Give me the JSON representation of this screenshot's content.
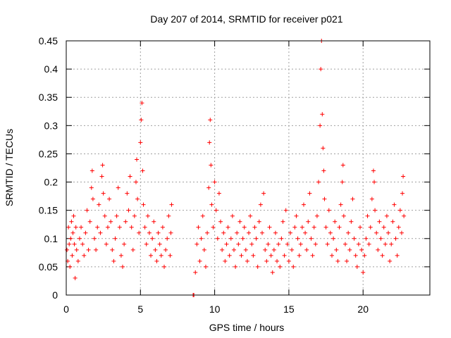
{
  "chart_data": {
    "type": "scatter",
    "title": "Day 207 of 2014, SRMTID for receiver p021",
    "xlabel": "GPS time / hours",
    "ylabel": "SRMTID / TECUs",
    "xlim": [
      0,
      24.5
    ],
    "ylim": [
      0,
      0.45
    ],
    "x_ticks": [
      0,
      5,
      10,
      15,
      20
    ],
    "x_tick_labels": [
      "0",
      "5",
      "10",
      "15",
      "20"
    ],
    "y_ticks": [
      0,
      0.05,
      0.1,
      0.15,
      0.2,
      0.25,
      0.3,
      0.35,
      0.4,
      0.45
    ],
    "y_tick_labels": [
      "0",
      "0.05",
      "0.1",
      "0.15",
      "0.2",
      "0.25",
      "0.3",
      "0.35",
      "0.4",
      "0.45"
    ],
    "grid": true,
    "marker": "+",
    "series": [
      {
        "name": "SRMTID",
        "color": "#ff0000",
        "points": [
          [
            0.05,
            0.08
          ],
          [
            0.1,
            0.06
          ],
          [
            0.15,
            0.12
          ],
          [
            0.2,
            0.09
          ],
          [
            0.25,
            0.05
          ],
          [
            0.3,
            0.1
          ],
          [
            0.35,
            0.13
          ],
          [
            0.4,
            0.07
          ],
          [
            0.45,
            0.11
          ],
          [
            0.5,
            0.14
          ],
          [
            0.55,
            0.09
          ],
          [
            0.6,
            0.03
          ],
          [
            0.65,
            0.12
          ],
          [
            0.7,
            0.08
          ],
          [
            0.8,
            0.06
          ],
          [
            0.9,
            0.1
          ],
          [
            1.0,
            0.12
          ],
          [
            1.1,
            0.09
          ],
          [
            1.2,
            0.07
          ],
          [
            1.3,
            0.11
          ],
          [
            1.4,
            0.15
          ],
          [
            1.5,
            0.08
          ],
          [
            1.6,
            0.13
          ],
          [
            1.7,
            0.19
          ],
          [
            1.75,
            0.22
          ],
          [
            1.8,
            0.17
          ],
          [
            1.9,
            0.1
          ],
          [
            2.0,
            0.08
          ],
          [
            2.1,
            0.12
          ],
          [
            2.2,
            0.16
          ],
          [
            2.3,
            0.11
          ],
          [
            2.4,
            0.21
          ],
          [
            2.45,
            0.23
          ],
          [
            2.5,
            0.18
          ],
          [
            2.6,
            0.14
          ],
          [
            2.7,
            0.09
          ],
          [
            2.8,
            0.12
          ],
          [
            2.9,
            0.17
          ],
          [
            3.0,
            0.13
          ],
          [
            3.1,
            0.08
          ],
          [
            3.2,
            0.06
          ],
          [
            3.3,
            0.1
          ],
          [
            3.4,
            0.14
          ],
          [
            3.5,
            0.19
          ],
          [
            3.6,
            0.12
          ],
          [
            3.7,
            0.07
          ],
          [
            3.8,
            0.05
          ],
          [
            3.9,
            0.09
          ],
          [
            4.0,
            0.13
          ],
          [
            4.1,
            0.18
          ],
          [
            4.2,
            0.15
          ],
          [
            4.3,
            0.21
          ],
          [
            4.4,
            0.12
          ],
          [
            4.5,
            0.08
          ],
          [
            4.6,
            0.14
          ],
          [
            4.7,
            0.2
          ],
          [
            4.75,
            0.24
          ],
          [
            4.8,
            0.17
          ],
          [
            4.9,
            0.11
          ],
          [
            5.0,
            0.27
          ],
          [
            5.05,
            0.31
          ],
          [
            5.1,
            0.34
          ],
          [
            5.15,
            0.22
          ],
          [
            5.2,
            0.16
          ],
          [
            5.3,
            0.12
          ],
          [
            5.4,
            0.09
          ],
          [
            5.5,
            0.14
          ],
          [
            5.6,
            0.11
          ],
          [
            5.7,
            0.07
          ],
          [
            5.8,
            0.1
          ],
          [
            5.9,
            0.13
          ],
          [
            6.0,
            0.08
          ],
          [
            6.1,
            0.06
          ],
          [
            6.2,
            0.11
          ],
          [
            6.3,
            0.09
          ],
          [
            6.4,
            0.07
          ],
          [
            6.5,
            0.12
          ],
          [
            6.6,
            0.05
          ],
          [
            6.7,
            0.08
          ],
          [
            6.8,
            0.1
          ],
          [
            6.9,
            0.14
          ],
          [
            7.0,
            0.07
          ],
          [
            7.05,
            0.11
          ],
          [
            7.1,
            0.16
          ],
          [
            8.55,
            0.0
          ],
          [
            8.6,
            0.0
          ],
          [
            8.7,
            0.04
          ],
          [
            8.8,
            0.09
          ],
          [
            8.9,
            0.12
          ],
          [
            9.0,
            0.06
          ],
          [
            9.1,
            0.1
          ],
          [
            9.2,
            0.14
          ],
          [
            9.3,
            0.08
          ],
          [
            9.4,
            0.05
          ],
          [
            9.5,
            0.11
          ],
          [
            9.6,
            0.19
          ],
          [
            9.65,
            0.27
          ],
          [
            9.7,
            0.31
          ],
          [
            9.75,
            0.23
          ],
          [
            9.8,
            0.16
          ],
          [
            9.9,
            0.12
          ],
          [
            10.0,
            0.2
          ],
          [
            10.1,
            0.15
          ],
          [
            10.2,
            0.1
          ],
          [
            10.3,
            0.18
          ],
          [
            10.4,
            0.13
          ],
          [
            10.5,
            0.08
          ],
          [
            10.6,
            0.11
          ],
          [
            10.7,
            0.06
          ],
          [
            10.8,
            0.09
          ],
          [
            10.9,
            0.12
          ],
          [
            11.0,
            0.07
          ],
          [
            11.1,
            0.1
          ],
          [
            11.2,
            0.14
          ],
          [
            11.3,
            0.08
          ],
          [
            11.4,
            0.05
          ],
          [
            11.5,
            0.11
          ],
          [
            11.6,
            0.09
          ],
          [
            11.7,
            0.13
          ],
          [
            11.8,
            0.07
          ],
          [
            11.9,
            0.1
          ],
          [
            12.0,
            0.12
          ],
          [
            12.1,
            0.08
          ],
          [
            12.2,
            0.06
          ],
          [
            12.3,
            0.11
          ],
          [
            12.4,
            0.14
          ],
          [
            12.5,
            0.09
          ],
          [
            12.6,
            0.07
          ],
          [
            12.7,
            0.12
          ],
          [
            12.8,
            0.1
          ],
          [
            12.9,
            0.05
          ],
          [
            13.0,
            0.13
          ],
          [
            13.1,
            0.16
          ],
          [
            13.2,
            0.11
          ],
          [
            13.3,
            0.18
          ],
          [
            13.4,
            0.08
          ],
          [
            13.5,
            0.06
          ],
          [
            13.6,
            0.09
          ],
          [
            13.7,
            0.12
          ],
          [
            13.8,
            0.07
          ],
          [
            13.9,
            0.04
          ],
          [
            14.0,
            0.08
          ],
          [
            14.1,
            0.11
          ],
          [
            14.2,
            0.06
          ],
          [
            14.3,
            0.09
          ],
          [
            14.4,
            0.05
          ],
          [
            14.5,
            0.1
          ],
          [
            14.6,
            0.13
          ],
          [
            14.7,
            0.07
          ],
          [
            14.8,
            0.15
          ],
          [
            14.9,
            0.09
          ],
          [
            15.0,
            0.06
          ],
          [
            15.1,
            0.11
          ],
          [
            15.2,
            0.08
          ],
          [
            15.3,
            0.05
          ],
          [
            15.4,
            0.12
          ],
          [
            15.5,
            0.14
          ],
          [
            15.6,
            0.1
          ],
          [
            15.7,
            0.07
          ],
          [
            15.8,
            0.09
          ],
          [
            15.9,
            0.12
          ],
          [
            16.0,
            0.16
          ],
          [
            16.1,
            0.11
          ],
          [
            16.2,
            0.08
          ],
          [
            16.3,
            0.13
          ],
          [
            16.4,
            0.18
          ],
          [
            16.5,
            0.1
          ],
          [
            16.6,
            0.07
          ],
          [
            16.7,
            0.12
          ],
          [
            16.8,
            0.09
          ],
          [
            16.9,
            0.14
          ],
          [
            17.0,
            0.2
          ],
          [
            17.1,
            0.3
          ],
          [
            17.15,
            0.4
          ],
          [
            17.2,
            0.45
          ],
          [
            17.25,
            0.32
          ],
          [
            17.3,
            0.26
          ],
          [
            17.35,
            0.22
          ],
          [
            17.4,
            0.17
          ],
          [
            17.5,
            0.12
          ],
          [
            17.6,
            0.09
          ],
          [
            17.7,
            0.15
          ],
          [
            17.8,
            0.11
          ],
          [
            17.9,
            0.07
          ],
          [
            18.0,
            0.1
          ],
          [
            18.1,
            0.13
          ],
          [
            18.2,
            0.08
          ],
          [
            18.3,
            0.06
          ],
          [
            18.4,
            0.12
          ],
          [
            18.5,
            0.16
          ],
          [
            18.6,
            0.2
          ],
          [
            18.65,
            0.23
          ],
          [
            18.7,
            0.14
          ],
          [
            18.8,
            0.09
          ],
          [
            18.9,
            0.06
          ],
          [
            19.0,
            0.11
          ],
          [
            19.1,
            0.08
          ],
          [
            19.2,
            0.13
          ],
          [
            19.3,
            0.17
          ],
          [
            19.4,
            0.1
          ],
          [
            19.5,
            0.07
          ],
          [
            19.6,
            0.05
          ],
          [
            19.7,
            0.09
          ],
          [
            19.8,
            0.12
          ],
          [
            19.9,
            0.08
          ],
          [
            20.0,
            0.04
          ],
          [
            20.1,
            0.07
          ],
          [
            20.2,
            0.1
          ],
          [
            20.3,
            0.14
          ],
          [
            20.4,
            0.09
          ],
          [
            20.5,
            0.12
          ],
          [
            20.6,
            0.17
          ],
          [
            20.7,
            0.22
          ],
          [
            20.75,
            0.2
          ],
          [
            20.8,
            0.15
          ],
          [
            20.9,
            0.11
          ],
          [
            21.0,
            0.08
          ],
          [
            21.1,
            0.13
          ],
          [
            21.2,
            0.1
          ],
          [
            21.3,
            0.07
          ],
          [
            21.4,
            0.12
          ],
          [
            21.5,
            0.09
          ],
          [
            21.6,
            0.14
          ],
          [
            21.7,
            0.11
          ],
          [
            21.8,
            0.06
          ],
          [
            21.9,
            0.09
          ],
          [
            22.0,
            0.13
          ],
          [
            22.1,
            0.16
          ],
          [
            22.2,
            0.1
          ],
          [
            22.3,
            0.07
          ],
          [
            22.4,
            0.12
          ],
          [
            22.5,
            0.15
          ],
          [
            22.6,
            0.11
          ],
          [
            22.65,
            0.18
          ],
          [
            22.7,
            0.21
          ],
          [
            22.75,
            0.14
          ]
        ]
      }
    ]
  }
}
